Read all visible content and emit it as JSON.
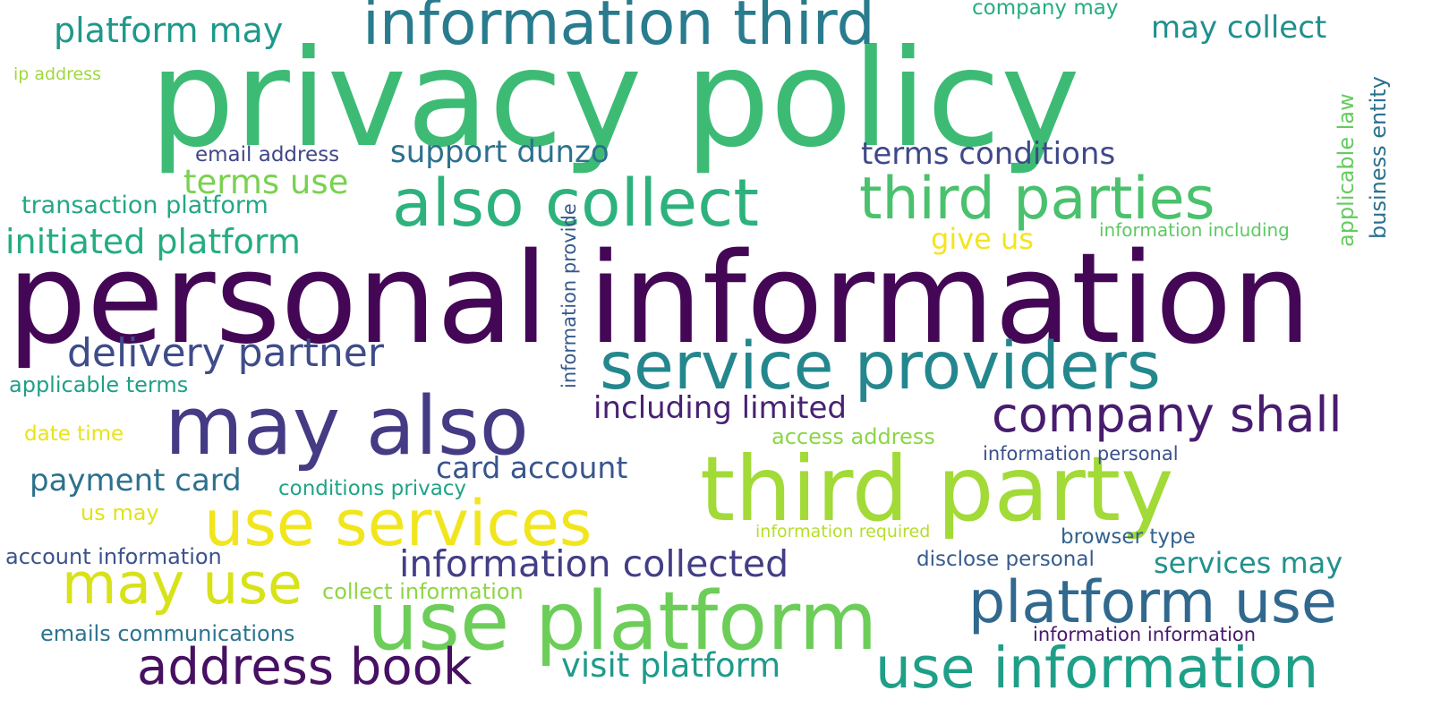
{
  "words": [
    {
      "text": "privacy policy",
      "color": "#3dbb75"
    },
    {
      "text": "personal information",
      "color": "#440756"
    },
    {
      "text": "third party",
      "color": "#a2da37"
    },
    {
      "text": "information third",
      "color": "#297b8e"
    },
    {
      "text": "may also",
      "color": "#443b84"
    },
    {
      "text": "use services",
      "color": "#f1e51d"
    },
    {
      "text": "use platform",
      "color": "#6cce59"
    },
    {
      "text": "service providers",
      "color": "#24878e"
    },
    {
      "text": "also collect",
      "color": "#2db27d"
    },
    {
      "text": "third parties",
      "color": "#4ac16d"
    },
    {
      "text": "platform use",
      "color": "#31688e"
    },
    {
      "text": "use information",
      "color": "#1f9f88"
    },
    {
      "text": "company shall",
      "color": "#481c6e"
    },
    {
      "text": "may use",
      "color": "#d8e219"
    },
    {
      "text": "address book",
      "color": "#471063"
    },
    {
      "text": "information collected",
      "color": "#433e85"
    },
    {
      "text": "delivery partner",
      "color": "#3e4c8a"
    },
    {
      "text": "visit platform",
      "color": "#1e9b8a"
    },
    {
      "text": "initiated platform",
      "color": "#25ac82"
    },
    {
      "text": "platform may",
      "color": "#1f988b"
    },
    {
      "text": "may collect",
      "color": "#218f8d"
    },
    {
      "text": "terms conditions",
      "color": "#3f4889"
    },
    {
      "text": "support dunzo",
      "color": "#2c718e"
    },
    {
      "text": "including limited",
      "color": "#482173"
    },
    {
      "text": "card account",
      "color": "#39558c"
    },
    {
      "text": "payment card",
      "color": "#2d708e"
    },
    {
      "text": "terms use",
      "color": "#7ad151"
    },
    {
      "text": "services may",
      "color": "#21918c"
    },
    {
      "text": "transaction platform",
      "color": "#22a884"
    },
    {
      "text": "give us",
      "color": "#f3e51e"
    },
    {
      "text": "email address",
      "color": "#404688"
    },
    {
      "text": "applicable terms",
      "color": "#1fa088"
    },
    {
      "text": "access address",
      "color": "#8bd646"
    },
    {
      "text": "conditions privacy",
      "color": "#20a486"
    },
    {
      "text": "account information",
      "color": "#3b528b"
    },
    {
      "text": "collect information",
      "color": "#8ed645"
    },
    {
      "text": "emails communications",
      "color": "#2b748e"
    },
    {
      "text": "information required",
      "color": "#b5de2b"
    },
    {
      "text": "browser type",
      "color": "#33638d"
    },
    {
      "text": "disclose personal",
      "color": "#375b8d"
    },
    {
      "text": "information information",
      "color": "#48186a"
    },
    {
      "text": "information personal",
      "color": "#3b518b"
    },
    {
      "text": "information including",
      "color": "#5ec962"
    },
    {
      "text": "date time",
      "color": "#e7e419"
    },
    {
      "text": "us may",
      "color": "#e0e318"
    },
    {
      "text": "ip address",
      "color": "#9dd93b"
    },
    {
      "text": "company may",
      "color": "#27ad81"
    },
    {
      "text": "information provide",
      "color": "#38598c"
    },
    {
      "text": "applicable law",
      "color": "#65cb5e"
    },
    {
      "text": "business entity",
      "color": "#2c728e"
    }
  ]
}
